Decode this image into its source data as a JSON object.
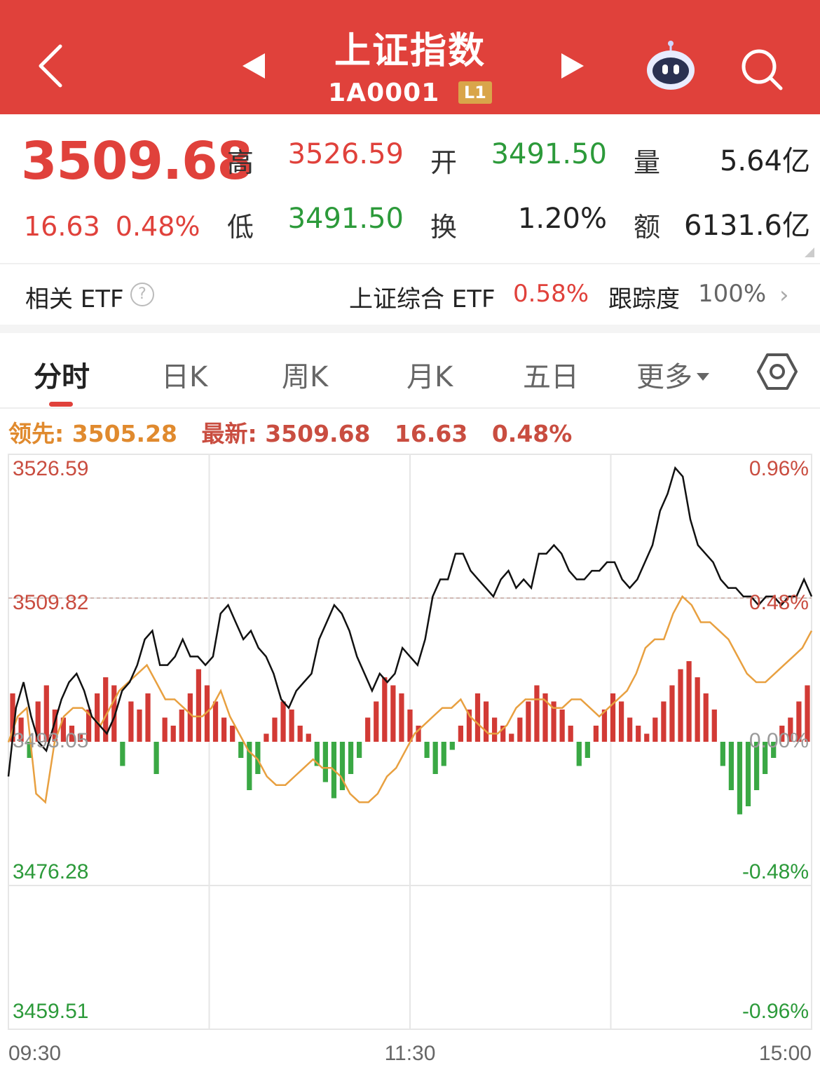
{
  "header": {
    "title": "上证指数",
    "code": "1A0001",
    "level_badge": "L1",
    "colors": {
      "bg": "#e0413b",
      "badge": "#d9a54a"
    },
    "icons": [
      "back-arrow-icon",
      "prev-stock-icon",
      "next-stock-icon",
      "robot-assistant-icon",
      "search-icon"
    ]
  },
  "quote": {
    "price": "3509.68",
    "change": "16.63",
    "change_pct": "0.48%",
    "high_label": "高",
    "high": "3526.59",
    "open_label": "开",
    "open": "3491.50",
    "volume_label": "量",
    "volume": "5.64亿",
    "low_label": "低",
    "low": "3491.50",
    "turnover_label": "换",
    "turnover": "1.20%",
    "amount_label": "额",
    "amount": "6131.6亿"
  },
  "etf": {
    "title": "相关 ETF",
    "help": "?",
    "name": "上证综合 ETF",
    "pct": "0.58%",
    "tracking_label": "跟踪度",
    "tracking": "100%",
    "arrow": "›"
  },
  "tabs": {
    "items": [
      "分时",
      "日K",
      "周K",
      "月K",
      "五日",
      "更多"
    ],
    "active": "分时"
  },
  "info_line": {
    "leading_label": "领先:",
    "leading_value": "3505.28",
    "latest_label": "最新:",
    "latest_value": "3509.68",
    "latest_change": "16.63",
    "latest_pct": "0.48%"
  },
  "chart_data": {
    "type": "line",
    "y_ticks_left": [
      "3526.59",
      "3509.82",
      "3493.05",
      "3476.28",
      "3459.51"
    ],
    "y_ticks_right": [
      "0.96%",
      "0.48%",
      "0.00%",
      "-0.48%",
      "-0.96%"
    ],
    "x_ticks": [
      "09:30",
      "11:30",
      "15:00"
    ],
    "ylim": [
      3459.51,
      3526.59
    ],
    "prev_close": 3493.05,
    "colors": {
      "price_line": "#111111",
      "leading_line": "#e8a040",
      "bar_up": "#d23a35",
      "bar_down": "#3aa844",
      "up_text": "#c94d40",
      "down_text": "#2c9a3a"
    },
    "price_series": [
      3489,
      3497,
      3500,
      3496,
      3493,
      3492,
      3495,
      3498,
      3500,
      3501,
      3499,
      3496,
      3495,
      3494,
      3496,
      3499,
      3500,
      3502,
      3505,
      3506,
      3502,
      3502,
      3503,
      3505,
      3503,
      3503,
      3502,
      3503,
      3508,
      3509,
      3507,
      3505,
      3506,
      3504,
      3503,
      3501,
      3498,
      3497,
      3499,
      3500,
      3501,
      3505,
      3507,
      3509,
      3508,
      3506,
      3503,
      3501,
      3499,
      3501,
      3500,
      3501,
      3504,
      3503,
      3502,
      3505,
      3510,
      3512,
      3512,
      3515,
      3515,
      3513,
      3512,
      3511,
      3510,
      3512,
      3513,
      3511,
      3512,
      3511,
      3515,
      3515,
      3516,
      3515,
      3513,
      3512,
      3512,
      3513,
      3513,
      3514,
      3514,
      3512,
      3511,
      3512,
      3514,
      3516,
      3520,
      3522,
      3525,
      3524,
      3519,
      3516,
      3515,
      3514,
      3512,
      3511,
      3511,
      3510,
      3510,
      3509,
      3510,
      3510,
      3509,
      3510,
      3510,
      3512,
      3510
    ],
    "leading_series": [
      3493,
      3496,
      3497,
      3487,
      3486,
      3493,
      3496,
      3497,
      3497,
      3496,
      3495,
      3497,
      3499,
      3500,
      3501,
      3502,
      3500,
      3498,
      3498,
      3497,
      3496,
      3496,
      3497,
      3499,
      3496,
      3494,
      3492,
      3491,
      3489,
      3488,
      3488,
      3489,
      3490,
      3491,
      3490,
      3490,
      3489,
      3487,
      3486,
      3486,
      3487,
      3489,
      3490,
      3492,
      3494,
      3495,
      3496,
      3497,
      3497,
      3498,
      3496,
      3495,
      3494,
      3494,
      3495,
      3497,
      3498,
      3498,
      3498,
      3497,
      3497,
      3498,
      3498,
      3497,
      3496,
      3497,
      3498,
      3499,
      3501,
      3504,
      3505,
      3505,
      3508,
      3510,
      3509,
      3507,
      3507,
      3506,
      3505,
      3503,
      3501,
      3500,
      3500,
      3501,
      3502,
      3503,
      3504,
      3506
    ],
    "volume_bars": [
      6,
      3,
      -2,
      5,
      7,
      4,
      3,
      2,
      1,
      4,
      6,
      8,
      7,
      -3,
      5,
      4,
      6,
      -4,
      3,
      2,
      4,
      6,
      9,
      7,
      5,
      3,
      2,
      -2,
      -6,
      -4,
      1,
      3,
      5,
      4,
      2,
      1,
      -3,
      -5,
      -7,
      -6,
      -4,
      -2,
      3,
      5,
      8,
      7,
      6,
      4,
      2,
      -2,
      -4,
      -3,
      -1,
      2,
      4,
      6,
      5,
      3,
      2,
      1,
      3,
      5,
      7,
      6,
      5,
      4,
      2,
      -3,
      -2,
      2,
      4,
      6,
      5,
      3,
      2,
      1,
      3,
      5,
      7,
      9,
      10,
      8,
      6,
      4,
      -3,
      -6,
      -9,
      -8,
      -6,
      -4,
      -2,
      2,
      3,
      5,
      7
    ]
  }
}
